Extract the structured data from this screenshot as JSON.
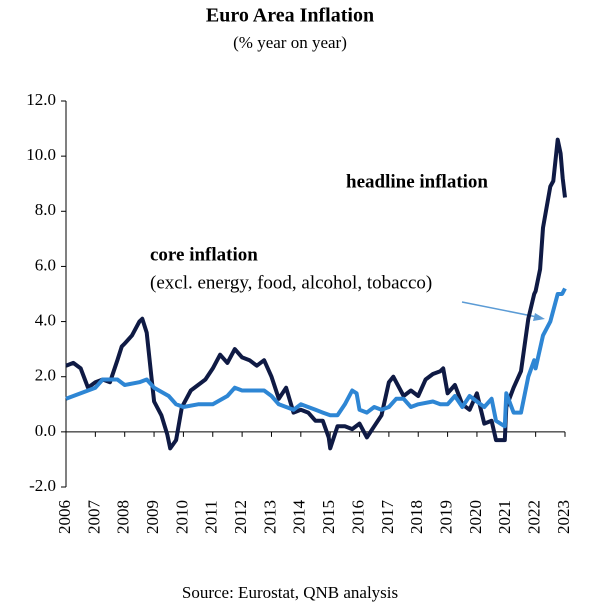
{
  "chart_data": {
    "type": "line",
    "title": "Euro Area Inflation",
    "subtitle": "(% year on year)",
    "source": "Source: Eurostat, QNB analysis",
    "annotations": [
      "headline inflation",
      "core inflation",
      "(excl.  energy,  food, alcohol, tobacco)"
    ],
    "xlim": [
      2006,
      2023
    ],
    "xticks": [
      2006,
      2007,
      2008,
      2009,
      2010,
      2011,
      2012,
      2013,
      2014,
      2015,
      2016,
      2017,
      2018,
      2019,
      2020,
      2021,
      2022,
      2023
    ],
    "ylim": [
      -2,
      12
    ],
    "yticks": [
      {
        "value": -2,
        "label": "-2.0"
      },
      {
        "value": 0,
        "label": "0.0"
      },
      {
        "value": 2,
        "label": "2.0"
      },
      {
        "value": 4,
        "label": "4.0"
      },
      {
        "value": 6,
        "label": "6.0"
      },
      {
        "value": 8,
        "label": "8.0"
      },
      {
        "value": 10,
        "label": "10.0"
      },
      {
        "value": 12,
        "label": "12.0"
      }
    ],
    "grid": false,
    "series": [
      {
        "name": "headline inflation",
        "color": "#0f1a44",
        "x": [
          2006.0,
          2006.25,
          2006.5,
          2006.75,
          2007.0,
          2007.25,
          2007.5,
          2007.75,
          2007.9,
          2008.0,
          2008.25,
          2008.5,
          2008.6,
          2008.75,
          2008.9,
          2009.0,
          2009.25,
          2009.45,
          2009.55,
          2009.75,
          2009.95,
          2010.0,
          2010.25,
          2010.5,
          2010.75,
          2011.0,
          2011.25,
          2011.5,
          2011.75,
          2012.0,
          2012.25,
          2012.5,
          2012.75,
          2013.0,
          2013.25,
          2013.5,
          2013.75,
          2014.0,
          2014.25,
          2014.5,
          2014.75,
          2014.95,
          2015.0,
          2015.25,
          2015.5,
          2015.75,
          2016.0,
          2016.25,
          2016.5,
          2016.75,
          2017.0,
          2017.15,
          2017.5,
          2017.75,
          2018.0,
          2018.25,
          2018.5,
          2018.75,
          2018.85,
          2019.0,
          2019.25,
          2019.5,
          2019.75,
          2020.0,
          2020.25,
          2020.5,
          2020.65,
          2020.95,
          2021.0,
          2021.25,
          2021.5,
          2021.75,
          2021.95,
          2022.0,
          2022.15,
          2022.25,
          2022.5,
          2022.6,
          2022.75,
          2022.85,
          2022.92,
          2023.0
        ],
        "values": [
          2.4,
          2.5,
          2.3,
          1.6,
          1.8,
          1.9,
          1.8,
          2.6,
          3.1,
          3.2,
          3.5,
          4.0,
          4.1,
          3.6,
          2.1,
          1.1,
          0.6,
          -0.1,
          -0.6,
          -0.3,
          0.9,
          1.0,
          1.5,
          1.7,
          1.9,
          2.3,
          2.8,
          2.5,
          3.0,
          2.7,
          2.6,
          2.4,
          2.6,
          2.0,
          1.2,
          1.6,
          0.7,
          0.8,
          0.7,
          0.4,
          0.4,
          -0.2,
          -0.6,
          0.2,
          0.2,
          0.1,
          0.3,
          -0.2,
          0.2,
          0.6,
          1.8,
          2.0,
          1.3,
          1.5,
          1.3,
          1.9,
          2.1,
          2.2,
          2.3,
          1.4,
          1.7,
          1.0,
          0.8,
          1.4,
          0.3,
          0.4,
          -0.3,
          -0.3,
          0.9,
          1.6,
          2.2,
          4.1,
          5.0,
          5.1,
          5.9,
          7.4,
          8.9,
          9.1,
          10.6,
          10.1,
          9.2,
          8.5
        ]
      },
      {
        "name": "core inflation",
        "color": "#2e86d4",
        "x": [
          2006.0,
          2006.5,
          2007.0,
          2007.25,
          2007.75,
          2008.0,
          2008.5,
          2008.75,
          2009.0,
          2009.5,
          2009.75,
          2010.0,
          2010.5,
          2011.0,
          2011.5,
          2011.75,
          2012.0,
          2012.5,
          2012.75,
          2013.0,
          2013.25,
          2013.75,
          2014.0,
          2014.5,
          2014.75,
          2015.0,
          2015.25,
          2015.5,
          2015.75,
          2015.9,
          2016.0,
          2016.25,
          2016.5,
          2016.75,
          2017.0,
          2017.25,
          2017.5,
          2017.75,
          2018.0,
          2018.5,
          2018.75,
          2019.0,
          2019.25,
          2019.5,
          2019.75,
          2020.0,
          2020.25,
          2020.5,
          2020.65,
          2020.95,
          2021.0,
          2021.25,
          2021.5,
          2021.75,
          2021.95,
          2022.0,
          2022.25,
          2022.5,
          2022.75,
          2022.9,
          2023.0
        ],
        "values": [
          1.2,
          1.4,
          1.6,
          1.9,
          1.9,
          1.7,
          1.8,
          1.9,
          1.6,
          1.3,
          1.0,
          0.9,
          1.0,
          1.0,
          1.3,
          1.6,
          1.5,
          1.5,
          1.5,
          1.3,
          1.0,
          0.8,
          1.0,
          0.8,
          0.7,
          0.6,
          0.6,
          1.0,
          1.5,
          1.4,
          0.8,
          0.7,
          0.9,
          0.8,
          0.9,
          1.2,
          1.2,
          0.9,
          1.0,
          1.1,
          1.0,
          1.0,
          1.3,
          0.9,
          1.3,
          1.1,
          0.9,
          1.2,
          0.4,
          0.2,
          1.4,
          0.7,
          0.7,
          2.0,
          2.6,
          2.3,
          3.5,
          4.0,
          5.0,
          5.0,
          5.2
        ]
      }
    ]
  }
}
